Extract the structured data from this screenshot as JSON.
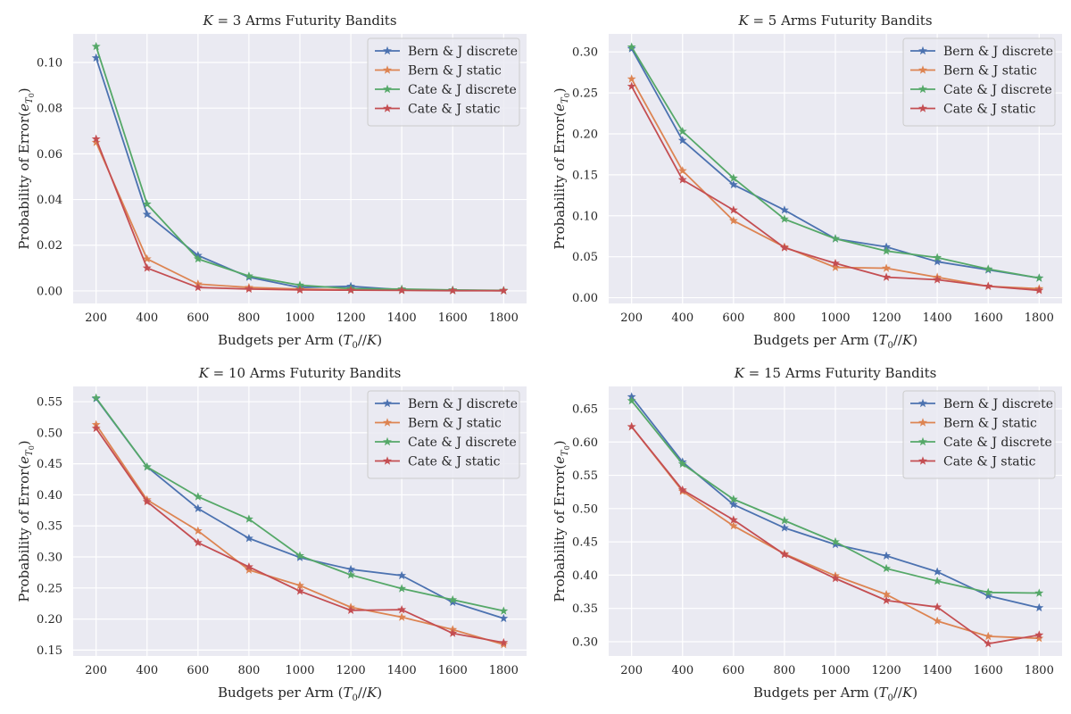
{
  "figure": {
    "background": "#ffffff",
    "plot_bg": "#eaeaf2",
    "grid_color": "#ffffff"
  },
  "series_colors": [
    "#4c72b0",
    "#dd8452",
    "#55a868",
    "#c44e52"
  ],
  "marker": "star",
  "chart_data": [
    {
      "type": "line",
      "title": "K = 3 Arms Futurity Bandits",
      "xlabel": "Budgets per Arm (T0//K)",
      "ylabel": "Probability of Error(eT0)",
      "x": [
        200,
        400,
        600,
        800,
        1000,
        1200,
        1400,
        1600,
        1800
      ],
      "xlim": [
        110,
        1890
      ],
      "xticks": [
        200,
        400,
        600,
        800,
        1000,
        1200,
        1400,
        1600,
        1800
      ],
      "ylim": [
        -0.0055,
        0.1125
      ],
      "yticks": [
        0.0,
        0.02,
        0.04,
        0.06,
        0.08,
        0.1
      ],
      "ytick_labels": [
        "0.00",
        "0.02",
        "0.04",
        "0.06",
        "0.08",
        "0.10"
      ],
      "grid": true,
      "legend": "upper right",
      "series": [
        {
          "name": "Bern & J discrete",
          "values": [
            0.102,
            0.0335,
            0.0155,
            0.006,
            0.0015,
            0.002,
            0.0005,
            0.0003,
            0.0001
          ]
        },
        {
          "name": "Bern & J static",
          "values": [
            0.065,
            0.014,
            0.003,
            0.0015,
            0.0008,
            0.0005,
            0.0003,
            0.0002,
            0.0001
          ]
        },
        {
          "name": "Cate & J discrete",
          "values": [
            0.107,
            0.038,
            0.014,
            0.0065,
            0.0025,
            0.001,
            0.0008,
            0.0004,
            0.0002
          ]
        },
        {
          "name": "Cate & J static",
          "values": [
            0.0665,
            0.01,
            0.0015,
            0.0008,
            0.0004,
            0.0003,
            0.0002,
            0.0001,
            0.0001
          ]
        }
      ]
    },
    {
      "type": "line",
      "title": "K = 5 Arms Futurity Bandits",
      "xlabel": "Budgets per Arm (T0//K)",
      "ylabel": "Probability of Error(eT0)",
      "x": [
        200,
        400,
        600,
        800,
        1000,
        1200,
        1400,
        1600,
        1800
      ],
      "xlim": [
        110,
        1890
      ],
      "xticks": [
        200,
        400,
        600,
        800,
        1000,
        1200,
        1400,
        1600,
        1800
      ],
      "ylim": [
        -0.007,
        0.322
      ],
      "yticks": [
        0.0,
        0.05,
        0.1,
        0.15,
        0.2,
        0.25,
        0.3
      ],
      "ytick_labels": [
        "0.00",
        "0.05",
        "0.10",
        "0.15",
        "0.20",
        "0.25",
        "0.30"
      ],
      "grid": true,
      "legend": "upper right",
      "series": [
        {
          "name": "Bern & J discrete",
          "values": [
            0.304,
            0.192,
            0.138,
            0.107,
            0.072,
            0.062,
            0.044,
            0.034,
            0.024
          ]
        },
        {
          "name": "Bern & J static",
          "values": [
            0.267,
            0.155,
            0.094,
            0.062,
            0.037,
            0.036,
            0.025,
            0.014,
            0.011
          ]
        },
        {
          "name": "Cate & J discrete",
          "values": [
            0.306,
            0.203,
            0.146,
            0.096,
            0.072,
            0.057,
            0.049,
            0.035,
            0.024
          ]
        },
        {
          "name": "Cate & J static",
          "values": [
            0.258,
            0.144,
            0.107,
            0.061,
            0.042,
            0.025,
            0.022,
            0.014,
            0.009
          ]
        }
      ]
    },
    {
      "type": "line",
      "title": "K = 10 Arms Futurity Bandits",
      "xlabel": "Budgets per Arm (T0//K)",
      "ylabel": "Probability of Error(eT0)",
      "x": [
        200,
        400,
        600,
        800,
        1000,
        1200,
        1400,
        1600,
        1800
      ],
      "xlim": [
        110,
        1890
      ],
      "xticks": [
        200,
        400,
        600,
        800,
        1000,
        1200,
        1400,
        1600,
        1800
      ],
      "ylim": [
        0.1405,
        0.5745
      ],
      "yticks": [
        0.15,
        0.2,
        0.25,
        0.3,
        0.35,
        0.4,
        0.45,
        0.5,
        0.55
      ],
      "ytick_labels": [
        "0.15",
        "0.20",
        "0.25",
        "0.30",
        "0.35",
        "0.40",
        "0.45",
        "0.50",
        "0.55"
      ],
      "grid": true,
      "legend": "upper right",
      "series": [
        {
          "name": "Bern & J discrete",
          "values": [
            0.555,
            0.445,
            0.378,
            0.33,
            0.299,
            0.28,
            0.27,
            0.227,
            0.201
          ]
        },
        {
          "name": "Bern & J static",
          "values": [
            0.513,
            0.392,
            0.342,
            0.279,
            0.254,
            0.219,
            0.203,
            0.183,
            0.159
          ]
        },
        {
          "name": "Cate & J discrete",
          "values": [
            0.556,
            0.445,
            0.397,
            0.361,
            0.302,
            0.271,
            0.249,
            0.231,
            0.213
          ]
        },
        {
          "name": "Cate & J static",
          "values": [
            0.507,
            0.389,
            0.323,
            0.284,
            0.245,
            0.214,
            0.215,
            0.177,
            0.162
          ]
        }
      ]
    },
    {
      "type": "line",
      "title": "K = 15 Arms Futurity Bandits",
      "xlabel": "Budgets per Arm (T0//K)",
      "ylabel": "Probability of Error(eT0)",
      "x": [
        200,
        400,
        600,
        800,
        1000,
        1200,
        1400,
        1600,
        1800
      ],
      "xlim": [
        110,
        1890
      ],
      "xticks": [
        200,
        400,
        600,
        800,
        1000,
        1200,
        1400,
        1600,
        1800
      ],
      "ylim": [
        0.2785,
        0.6835
      ],
      "yticks": [
        0.3,
        0.35,
        0.4,
        0.45,
        0.5,
        0.55,
        0.6,
        0.65
      ],
      "ytick_labels": [
        "0.30",
        "0.35",
        "0.40",
        "0.45",
        "0.50",
        "0.55",
        "0.60",
        "0.65"
      ],
      "grid": true,
      "legend": "upper right",
      "series": [
        {
          "name": "Bern & J discrete",
          "values": [
            0.668,
            0.57,
            0.506,
            0.471,
            0.446,
            0.429,
            0.405,
            0.369,
            0.351
          ]
        },
        {
          "name": "Bern & J static",
          "values": [
            0.623,
            0.526,
            0.474,
            0.432,
            0.399,
            0.371,
            0.331,
            0.308,
            0.305
          ]
        },
        {
          "name": "Cate & J discrete",
          "values": [
            0.662,
            0.567,
            0.514,
            0.482,
            0.45,
            0.41,
            0.391,
            0.374,
            0.373
          ]
        },
        {
          "name": "Cate & J static",
          "values": [
            0.623,
            0.528,
            0.483,
            0.431,
            0.395,
            0.362,
            0.352,
            0.297,
            0.31
          ]
        }
      ]
    }
  ]
}
